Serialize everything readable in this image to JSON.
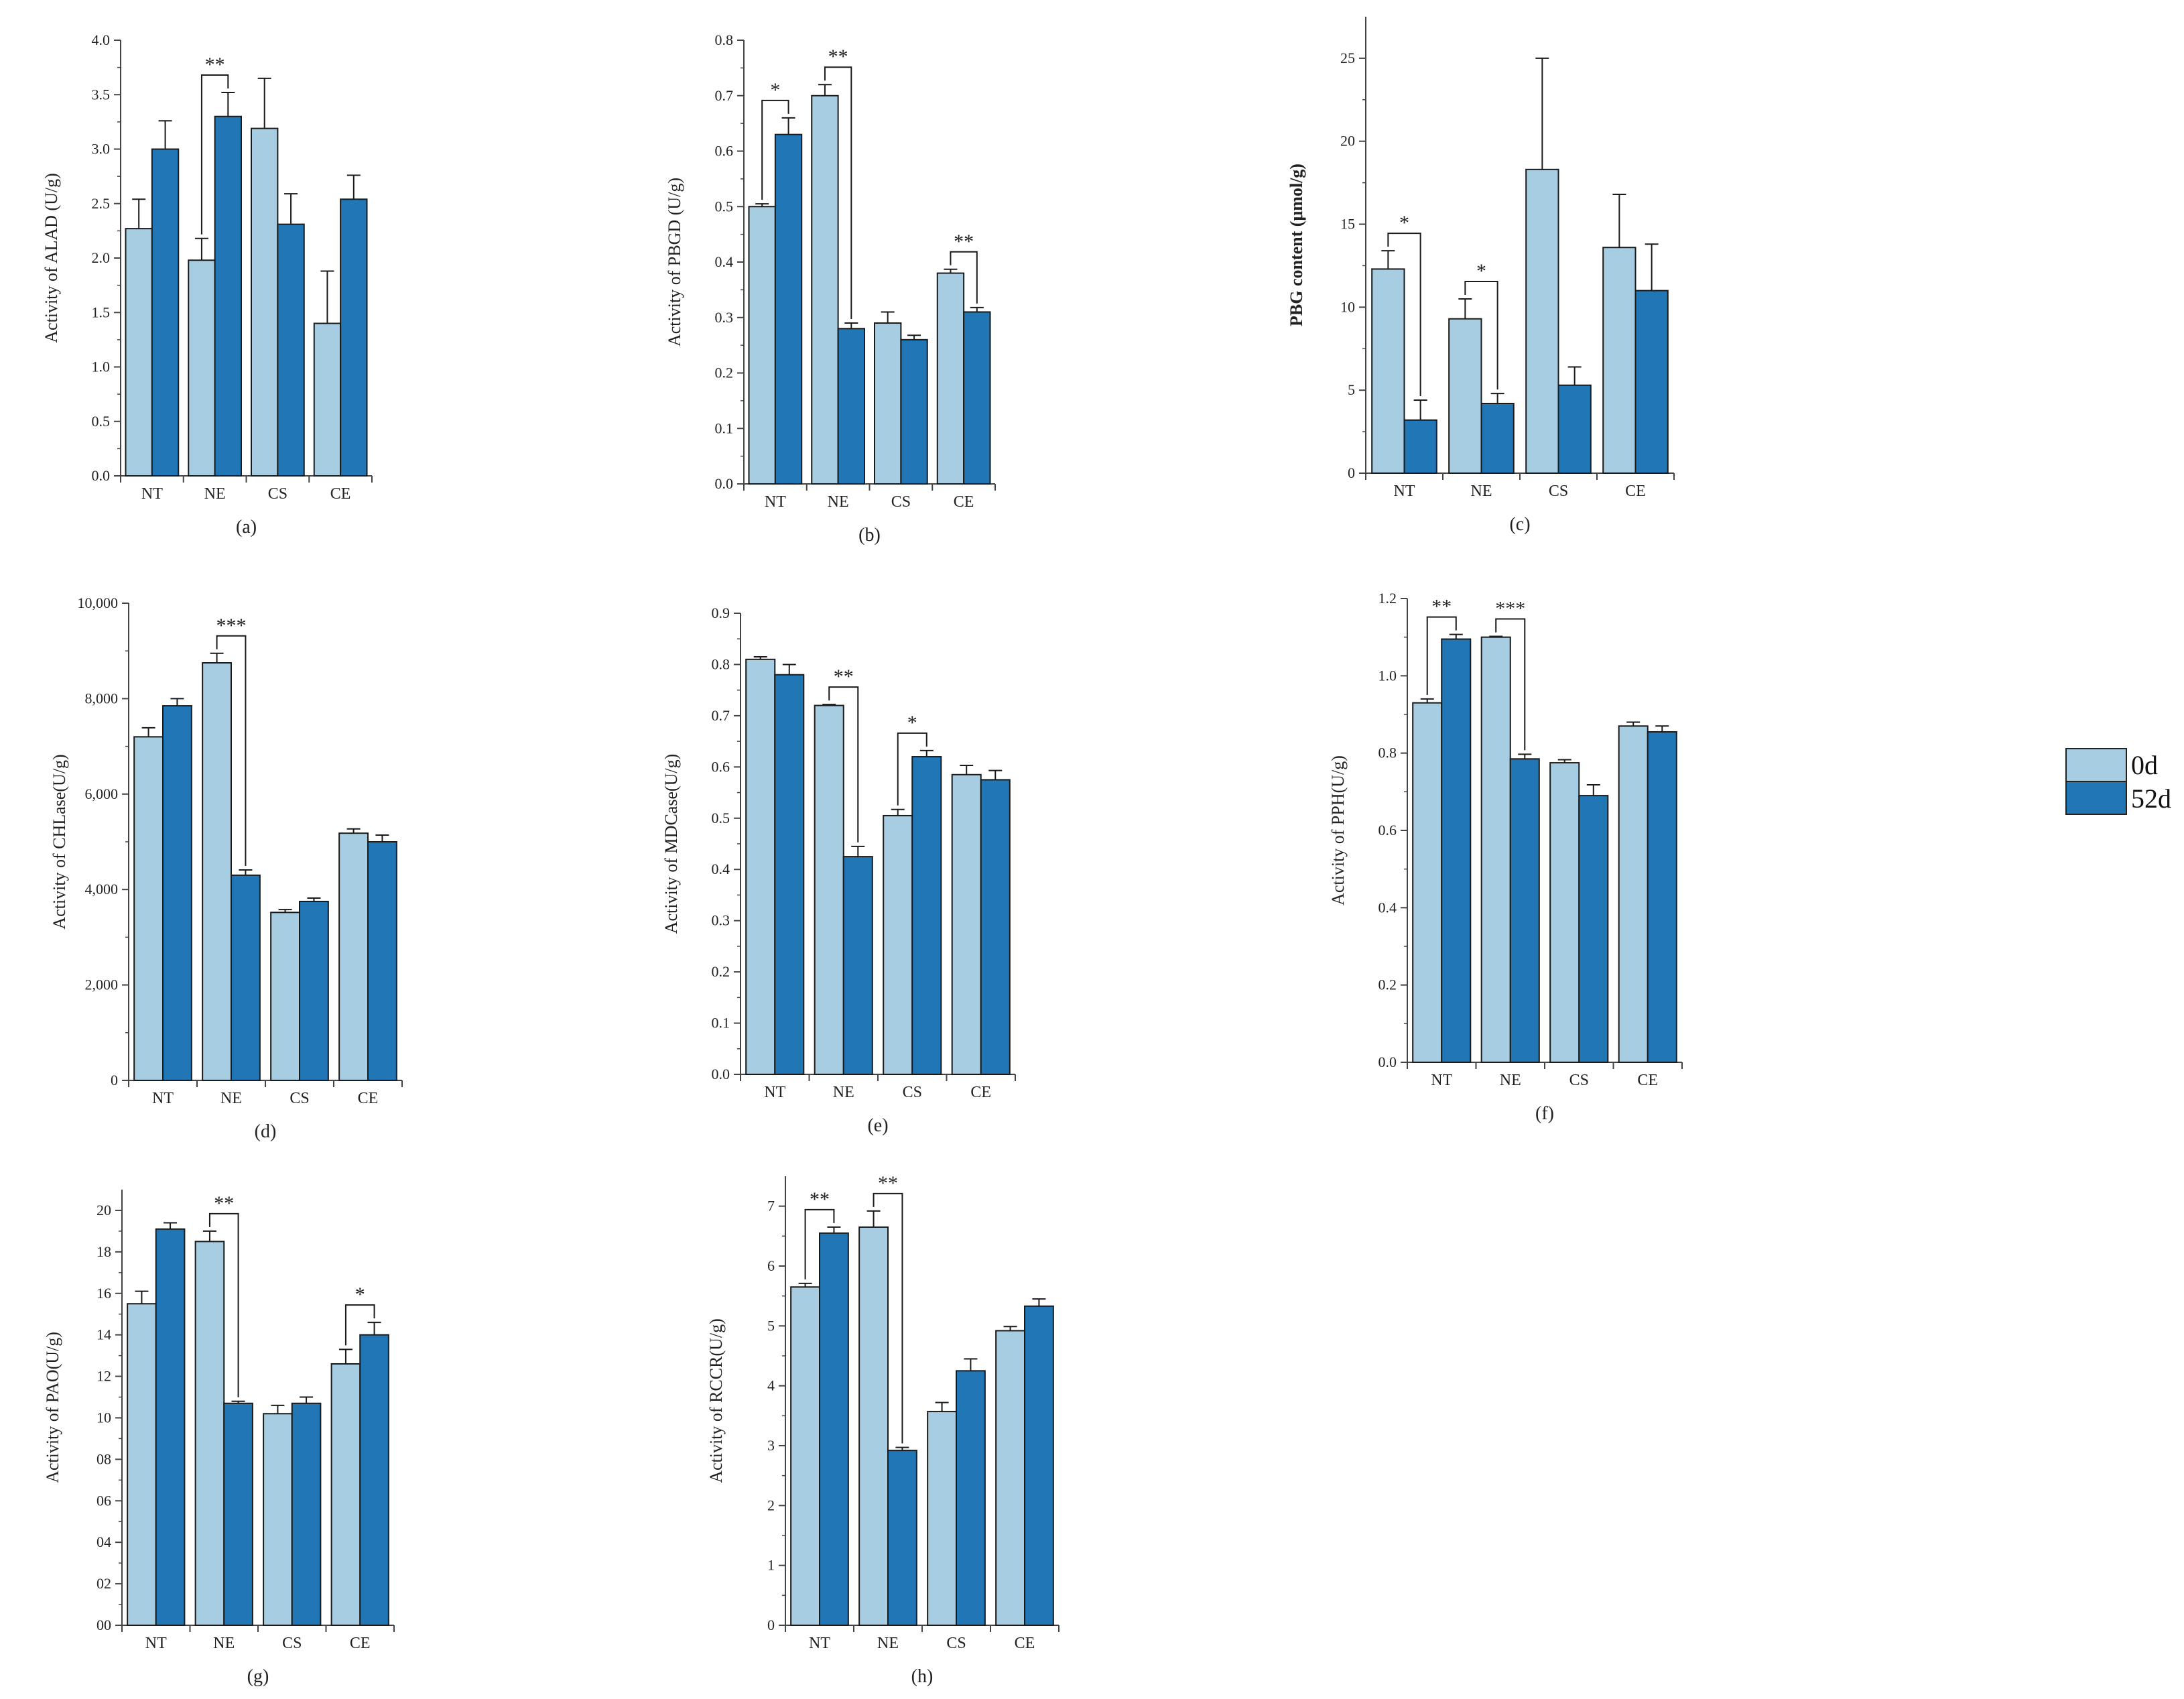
{
  "colors": {
    "day0": "#a6cde1",
    "day52": "#2176b5"
  },
  "legend": {
    "items": [
      {
        "label": "0d"
      },
      {
        "label": "52d"
      }
    ]
  },
  "chart_data": [
    {
      "type": "bar",
      "panel_label": "(a)",
      "ylabel": "Activity of ALAD (U/g)",
      "categories": [
        "NT",
        "NE",
        "CS",
        "CE"
      ],
      "series": [
        {
          "name": "0d",
          "values": [
            2.27,
            1.98,
            3.19,
            1.4
          ],
          "errors": [
            0.27,
            0.2,
            0.46,
            0.48
          ]
        },
        {
          "name": "52d",
          "values": [
            3.0,
            3.3,
            2.31,
            2.54
          ],
          "errors": [
            0.26,
            0.22,
            0.28,
            0.22
          ]
        }
      ],
      "ylim": [
        0,
        4.0
      ],
      "yticks": [
        "0.0",
        "0.5",
        "1.0",
        "1.5",
        "2.0",
        "2.5",
        "3.0",
        "3.5",
        "4.0"
      ],
      "significance": [
        {
          "category": "NE",
          "label": "**"
        }
      ]
    },
    {
      "type": "bar",
      "panel_label": "(b)",
      "ylabel": "Activity of PBGD (U/g)",
      "categories": [
        "NT",
        "NE",
        "CS",
        "CE"
      ],
      "series": [
        {
          "name": "0d",
          "values": [
            0.5,
            0.7,
            0.29,
            0.38
          ],
          "errors": [
            0.005,
            0.02,
            0.02,
            0.007
          ]
        },
        {
          "name": "52d",
          "values": [
            0.63,
            0.28,
            0.26,
            0.31
          ],
          "errors": [
            0.03,
            0.01,
            0.008,
            0.008
          ]
        }
      ],
      "ylim": [
        0,
        0.8
      ],
      "yticks": [
        "0.0",
        "0.1",
        "0.2",
        "0.3",
        "0.4",
        "0.5",
        "0.6",
        "0.7",
        "0.8"
      ],
      "significance": [
        {
          "category": "NT",
          "label": "*"
        },
        {
          "category": "NE",
          "label": "**"
        },
        {
          "category": "CE",
          "label": "**"
        }
      ]
    },
    {
      "type": "bar",
      "panel_label": "(c)",
      "ylabel": "PBG content (μmol/g)",
      "categories": [
        "NT",
        "NE",
        "CS",
        "CE"
      ],
      "series": [
        {
          "name": "0d",
          "values": [
            12.3,
            9.3,
            18.3,
            13.6
          ],
          "errors": [
            1.1,
            1.2,
            6.7,
            3.2
          ]
        },
        {
          "name": "52d",
          "values": [
            3.2,
            4.2,
            5.3,
            11.0
          ],
          "errors": [
            1.2,
            0.6,
            1.1,
            2.8
          ]
        }
      ],
      "ylim": [
        0,
        27.5
      ],
      "yticks": [
        "0",
        "5",
        "10",
        "15",
        "20",
        "25"
      ],
      "significance": [
        {
          "category": "NT",
          "label": "*"
        },
        {
          "category": "NE",
          "label": "*"
        }
      ]
    },
    {
      "type": "bar",
      "panel_label": "(d)",
      "ylabel": "Activity of CHLase(U/g)",
      "categories": [
        "NT",
        "NE",
        "CS",
        "CE"
      ],
      "series": [
        {
          "name": "0d",
          "values": [
            7200,
            8750,
            3520,
            5180
          ],
          "errors": [
            190,
            200,
            60,
            90
          ]
        },
        {
          "name": "52d",
          "values": [
            7850,
            4300,
            3750,
            5000
          ],
          "errors": [
            150,
            110,
            70,
            140
          ]
        }
      ],
      "ylim": [
        0,
        10000
      ],
      "yticks": [
        "0",
        "2,000",
        "4,000",
        "6,000",
        "8,000",
        "10,000"
      ],
      "significance": [
        {
          "category": "NE",
          "label": "***"
        }
      ]
    },
    {
      "type": "bar",
      "panel_label": "(e)",
      "ylabel": "Activity of MDCase(U/g)",
      "categories": [
        "NT",
        "NE",
        "CS",
        "CE"
      ],
      "series": [
        {
          "name": "0d",
          "values": [
            0.81,
            0.72,
            0.505,
            0.585
          ],
          "errors": [
            0.005,
            0.002,
            0.012,
            0.018
          ]
        },
        {
          "name": "52d",
          "values": [
            0.78,
            0.425,
            0.62,
            0.575
          ],
          "errors": [
            0.02,
            0.02,
            0.012,
            0.018
          ]
        }
      ],
      "ylim": [
        0,
        0.9
      ],
      "yticks": [
        "0.0",
        "0.1",
        "0.2",
        "0.3",
        "0.4",
        "0.5",
        "0.6",
        "0.7",
        "0.8",
        "0.9"
      ],
      "significance": [
        {
          "category": "NE",
          "label": "**"
        },
        {
          "category": "CS",
          "label": "*"
        }
      ]
    },
    {
      "type": "bar",
      "panel_label": "(f)",
      "ylabel": "Activity of PPH(U/g)",
      "categories": [
        "NT",
        "NE",
        "CS",
        "CE"
      ],
      "series": [
        {
          "name": "0d",
          "values": [
            0.93,
            1.1,
            0.775,
            0.87
          ],
          "errors": [
            0.01,
            0.002,
            0.008,
            0.01
          ]
        },
        {
          "name": "52d",
          "values": [
            1.095,
            0.785,
            0.69,
            0.855
          ],
          "errors": [
            0.012,
            0.012,
            0.028,
            0.015
          ]
        }
      ],
      "ylim": [
        0,
        1.2
      ],
      "yticks": [
        "0.0",
        "0.2",
        "0.4",
        "0.6",
        "0.8",
        "1.0",
        "1.2"
      ],
      "significance": [
        {
          "category": "NT",
          "label": "**"
        },
        {
          "category": "NE",
          "label": "***"
        }
      ]
    },
    {
      "type": "bar",
      "panel_label": "(g)",
      "ylabel": "Activity of PAO(U/g)",
      "categories": [
        "NT",
        "NE",
        "CS",
        "CE"
      ],
      "series": [
        {
          "name": "0d",
          "values": [
            15.5,
            18.5,
            10.2,
            12.6
          ],
          "errors": [
            0.6,
            0.5,
            0.4,
            0.7
          ]
        },
        {
          "name": "52d",
          "values": [
            19.1,
            10.7,
            10.7,
            14.0
          ],
          "errors": [
            0.3,
            0.1,
            0.3,
            0.6
          ]
        }
      ],
      "ylim": [
        0,
        21
      ],
      "yticks": [
        "00",
        "02",
        "04",
        "06",
        "08",
        "10",
        "12",
        "14",
        "16",
        "18",
        "20"
      ],
      "significance": [
        {
          "category": "NE",
          "label": "**"
        },
        {
          "category": "CE",
          "label": "*"
        }
      ]
    },
    {
      "type": "bar",
      "panel_label": "(h)",
      "ylabel": "Activity of RCCR(U/g)",
      "categories": [
        "NT",
        "NE",
        "CS",
        "CE"
      ],
      "series": [
        {
          "name": "0d",
          "values": [
            5.65,
            6.65,
            3.57,
            4.92
          ],
          "errors": [
            0.06,
            0.27,
            0.15,
            0.07
          ]
        },
        {
          "name": "52d",
          "values": [
            6.55,
            2.92,
            4.25,
            5.33
          ],
          "errors": [
            0.1,
            0.05,
            0.2,
            0.12
          ]
        }
      ],
      "ylim": [
        0,
        7.5
      ],
      "yticks": [
        "0",
        "1",
        "2",
        "3",
        "4",
        "5",
        "6",
        "7"
      ],
      "significance": [
        {
          "category": "NT",
          "label": "**"
        },
        {
          "category": "NE",
          "label": "**"
        }
      ]
    }
  ]
}
